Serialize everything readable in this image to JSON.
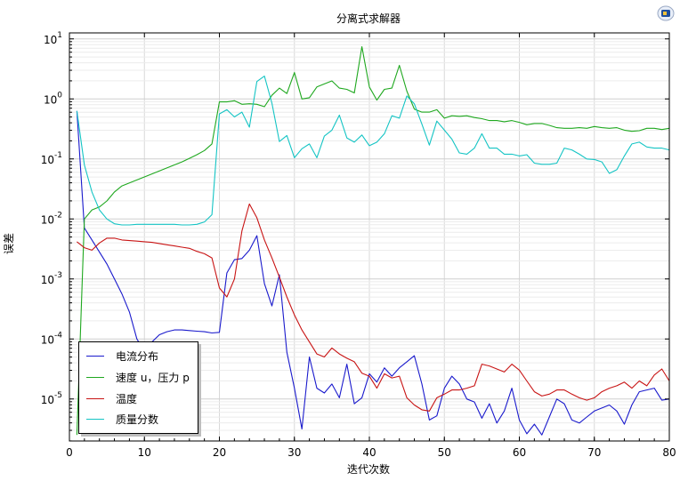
{
  "chart_data": {
    "type": "line",
    "title": "分离式求解器",
    "xlabel": "迭代次数",
    "ylabel": "误差",
    "xlim": [
      0,
      80
    ],
    "ylim_log10": [
      -5.7,
      1.1
    ],
    "y_scale": "log",
    "x_ticks": [
      0,
      10,
      20,
      30,
      40,
      50,
      60,
      70,
      80
    ],
    "y_tick_exponents": [
      -5,
      -4,
      -3,
      -2,
      -1,
      0,
      1
    ],
    "grid": true,
    "legend_position": "bottom-left",
    "series": [
      {
        "name": "电流分布",
        "color": "#1a1acc",
        "x": [
          1,
          2,
          3,
          4,
          5,
          6,
          7,
          8,
          9,
          10,
          11,
          12,
          13,
          14,
          15,
          16,
          17,
          18,
          19,
          20,
          21,
          22,
          23,
          24,
          25,
          26,
          27,
          28,
          29,
          30,
          31,
          32,
          33,
          34,
          35,
          36,
          37,
          38,
          39,
          40,
          41,
          42,
          43,
          44,
          45,
          46,
          47,
          48,
          49,
          50,
          51,
          52,
          53,
          54,
          55,
          56,
          57,
          58,
          59,
          60,
          61,
          62,
          63,
          64,
          65,
          66,
          67,
          68,
          69,
          70,
          71,
          72,
          73,
          74,
          75,
          76,
          77,
          78,
          79,
          80
        ],
        "log10_y": [
          -0.2,
          -2.15,
          -2.35,
          -2.55,
          -2.75,
          -3.0,
          -3.25,
          -3.55,
          -4.0,
          -4.2,
          -4.05,
          -3.93,
          -3.88,
          -3.85,
          -3.85,
          -3.86,
          -3.87,
          -3.88,
          -3.9,
          -3.89,
          -2.9,
          -2.68,
          -2.66,
          -2.52,
          -2.28,
          -3.08,
          -3.45,
          -2.93,
          -4.22,
          -4.82,
          -5.5,
          -4.3,
          -4.82,
          -4.9,
          -4.75,
          -4.98,
          -4.42,
          -5.08,
          -4.98,
          -4.58,
          -4.72,
          -4.48,
          -4.62,
          -4.48,
          -4.38,
          -4.28,
          -4.75,
          -5.35,
          -5.28,
          -4.82,
          -4.62,
          -4.75,
          -5.0,
          -5.05,
          -5.32,
          -5.08,
          -5.4,
          -5.2,
          -4.82,
          -5.35,
          -5.58,
          -5.42,
          -5.6,
          -5.3,
          -5.0,
          -5.08,
          -5.35,
          -5.4,
          -5.3,
          -5.2,
          -5.15,
          -5.1,
          -5.2,
          -5.42,
          -5.1,
          -4.88,
          -4.85,
          -4.82,
          -5.02,
          -5.0
        ]
      },
      {
        "name": "速度 u，压力 p",
        "color": "#1fa81f",
        "x": [
          1,
          2,
          3,
          4,
          5,
          6,
          7,
          8,
          9,
          10,
          11,
          12,
          13,
          14,
          15,
          16,
          17,
          18,
          19,
          20,
          21,
          22,
          23,
          24,
          25,
          26,
          27,
          28,
          29,
          30,
          31,
          32,
          33,
          34,
          35,
          36,
          37,
          38,
          39,
          40,
          41,
          42,
          43,
          44,
          45,
          46,
          47,
          48,
          49,
          50,
          51,
          52,
          53,
          54,
          55,
          56,
          57,
          58,
          59,
          60,
          61,
          62,
          63,
          64,
          65,
          66,
          67,
          68,
          69,
          70,
          71,
          72,
          73,
          74,
          75,
          76,
          77,
          78,
          79,
          80
        ],
        "log10_y": [
          -5.6,
          -2.0,
          -1.85,
          -1.8,
          -1.7,
          -1.55,
          -1.45,
          -1.4,
          -1.35,
          -1.3,
          -1.25,
          -1.2,
          -1.15,
          -1.1,
          -1.05,
          -0.99,
          -0.93,
          -0.86,
          -0.75,
          -0.05,
          -0.05,
          -0.03,
          -0.09,
          -0.08,
          -0.09,
          -0.13,
          0.06,
          0.18,
          0.09,
          0.44,
          0.0,
          0.02,
          0.2,
          0.25,
          0.3,
          0.18,
          0.16,
          0.1,
          0.87,
          0.2,
          -0.02,
          0.16,
          0.18,
          0.56,
          0.13,
          -0.17,
          -0.22,
          -0.22,
          -0.18,
          -0.32,
          -0.28,
          -0.29,
          -0.28,
          -0.31,
          -0.33,
          -0.36,
          -0.36,
          -0.38,
          -0.36,
          -0.39,
          -0.43,
          -0.41,
          -0.41,
          -0.44,
          -0.48,
          -0.49,
          -0.49,
          -0.48,
          -0.49,
          -0.46,
          -0.48,
          -0.49,
          -0.48,
          -0.52,
          -0.54,
          -0.53,
          -0.49,
          -0.49,
          -0.51,
          -0.49
        ]
      },
      {
        "name": "温度",
        "color": "#c81414",
        "x": [
          1,
          2,
          3,
          4,
          5,
          6,
          7,
          8,
          9,
          10,
          11,
          12,
          13,
          14,
          15,
          16,
          17,
          18,
          19,
          20,
          21,
          22,
          23,
          24,
          25,
          26,
          27,
          28,
          29,
          30,
          31,
          32,
          33,
          34,
          35,
          36,
          37,
          38,
          39,
          40,
          41,
          42,
          43,
          44,
          45,
          46,
          47,
          48,
          49,
          50,
          51,
          52,
          53,
          54,
          55,
          56,
          57,
          58,
          59,
          60,
          61,
          62,
          63,
          64,
          65,
          66,
          67,
          68,
          69,
          70,
          71,
          72,
          73,
          74,
          75,
          76,
          77,
          78,
          79,
          80
        ],
        "log10_y": [
          -2.38,
          -2.48,
          -2.52,
          -2.4,
          -2.32,
          -2.32,
          -2.35,
          -2.36,
          -2.37,
          -2.38,
          -2.39,
          -2.41,
          -2.43,
          -2.45,
          -2.47,
          -2.49,
          -2.54,
          -2.58,
          -2.65,
          -3.15,
          -3.3,
          -3.0,
          -2.2,
          -1.75,
          -1.98,
          -2.35,
          -2.65,
          -2.97,
          -3.3,
          -3.6,
          -3.85,
          -4.05,
          -4.25,
          -4.3,
          -4.15,
          -4.25,
          -4.32,
          -4.38,
          -4.57,
          -4.62,
          -4.82,
          -4.58,
          -4.65,
          -4.62,
          -4.98,
          -5.1,
          -5.18,
          -5.2,
          -4.98,
          -4.92,
          -4.85,
          -4.85,
          -4.82,
          -4.78,
          -4.42,
          -4.45,
          -4.5,
          -4.55,
          -4.42,
          -4.52,
          -4.7,
          -4.88,
          -4.95,
          -4.92,
          -4.85,
          -4.85,
          -4.92,
          -4.98,
          -5.02,
          -4.98,
          -4.88,
          -4.82,
          -4.78,
          -4.72,
          -4.82,
          -4.7,
          -4.78,
          -4.6,
          -4.5,
          -4.7
        ]
      },
      {
        "name": "质量分数",
        "color": "#14c4c4",
        "x": [
          1,
          2,
          3,
          4,
          5,
          6,
          7,
          8,
          9,
          10,
          11,
          12,
          13,
          14,
          15,
          16,
          17,
          18,
          19,
          20,
          21,
          22,
          23,
          24,
          25,
          26,
          27,
          28,
          29,
          30,
          31,
          32,
          33,
          34,
          35,
          36,
          37,
          38,
          39,
          40,
          41,
          42,
          43,
          44,
          45,
          46,
          47,
          48,
          49,
          50,
          51,
          52,
          53,
          54,
          55,
          56,
          57,
          58,
          59,
          60,
          61,
          62,
          63,
          64,
          65,
          66,
          67,
          68,
          69,
          70,
          71,
          72,
          73,
          74,
          75,
          76,
          77,
          78,
          79,
          80
        ],
        "log10_y": [
          -0.2,
          -1.1,
          -1.55,
          -1.85,
          -2.0,
          -2.08,
          -2.1,
          -2.1,
          -2.09,
          -2.09,
          -2.09,
          -2.09,
          -2.09,
          -2.09,
          -2.1,
          -2.1,
          -2.09,
          -2.05,
          -1.93,
          -0.25,
          -0.18,
          -0.3,
          -0.22,
          -0.47,
          0.29,
          0.38,
          -0.07,
          -0.71,
          -0.61,
          -0.98,
          -0.83,
          -0.75,
          -0.98,
          -0.62,
          -0.52,
          -0.27,
          -0.65,
          -0.72,
          -0.6,
          -0.78,
          -0.72,
          -0.58,
          -0.28,
          -0.32,
          0.05,
          -0.08,
          -0.42,
          -0.77,
          -0.37,
          -0.52,
          -0.67,
          -0.9,
          -0.92,
          -0.82,
          -0.58,
          -0.82,
          -0.82,
          -0.92,
          -0.92,
          -0.95,
          -0.93,
          -1.07,
          -1.09,
          -1.09,
          -1.07,
          -0.82,
          -0.85,
          -0.92,
          -1.0,
          -1.01,
          -1.05,
          -1.24,
          -1.18,
          -0.95,
          -0.75,
          -0.72,
          -0.8,
          -0.82,
          -0.82,
          -0.85
        ]
      }
    ]
  },
  "logo_icon": "comsol-logo-icon"
}
